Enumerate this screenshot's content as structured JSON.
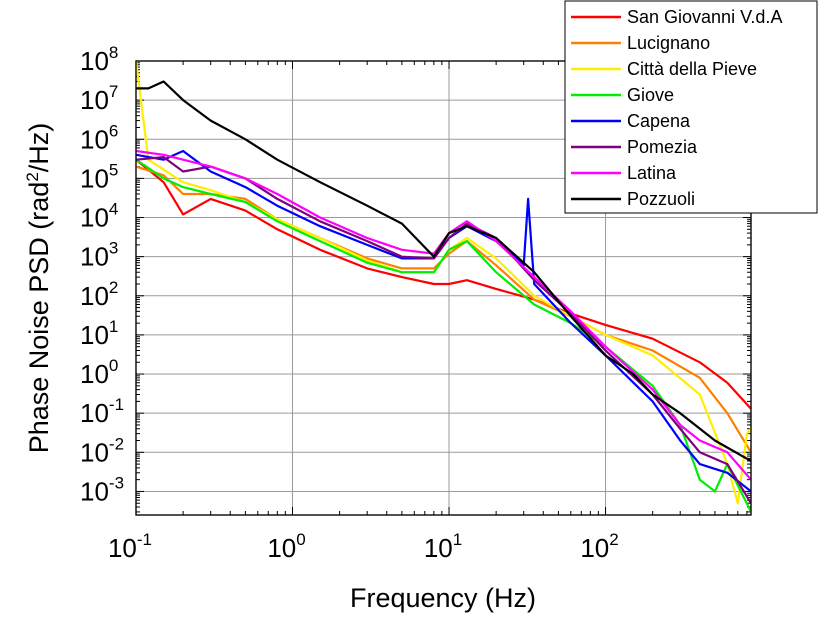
{
  "chart_data": {
    "type": "line",
    "title": "",
    "xlabel": "Frequency (Hz)",
    "ylabel_main": "Phase Noise PSD (rad",
    "ylabel_sup": "2",
    "ylabel_tail": "/Hz)",
    "x_scale": "log",
    "y_scale": "log",
    "xlim": [
      0.1,
      850
    ],
    "ylim": [
      0.00025,
      100000000
    ],
    "grid": true,
    "legend_position": "top-right",
    "x_ticks": [
      {
        "base": "10",
        "exp": "-1",
        "value": 0.1
      },
      {
        "base": "10",
        "exp": "0",
        "value": 1
      },
      {
        "base": "10",
        "exp": "1",
        "value": 10
      },
      {
        "base": "10",
        "exp": "2",
        "value": 100
      }
    ],
    "y_ticks": [
      {
        "base": "10",
        "exp": "8",
        "value": 100000000
      },
      {
        "base": "10",
        "exp": "7",
        "value": 10000000
      },
      {
        "base": "10",
        "exp": "6",
        "value": 1000000
      },
      {
        "base": "10",
        "exp": "5",
        "value": 100000
      },
      {
        "base": "10",
        "exp": "4",
        "value": 10000
      },
      {
        "base": "10",
        "exp": "3",
        "value": 1000
      },
      {
        "base": "10",
        "exp": "2",
        "value": 100
      },
      {
        "base": "10",
        "exp": "1",
        "value": 10
      },
      {
        "base": "10",
        "exp": "0",
        "value": 1
      },
      {
        "base": "10",
        "exp": "-1",
        "value": 0.1
      },
      {
        "base": "10",
        "exp": "-2",
        "value": 0.01
      },
      {
        "base": "10",
        "exp": "-3",
        "value": 0.001
      }
    ],
    "series": [
      {
        "name": "San Giovanni V.d.A",
        "color": "#ff0000",
        "points": [
          [
            0.1,
            300000
          ],
          [
            0.15,
            80000
          ],
          [
            0.2,
            12000
          ],
          [
            0.3,
            30000
          ],
          [
            0.5,
            15000
          ],
          [
            0.8,
            5000
          ],
          [
            1.5,
            1500
          ],
          [
            3,
            500
          ],
          [
            5,
            300
          ],
          [
            8,
            200
          ],
          [
            10,
            200
          ],
          [
            13,
            250
          ],
          [
            20,
            150
          ],
          [
            35,
            80
          ],
          [
            60,
            35
          ],
          [
            100,
            18
          ],
          [
            200,
            8
          ],
          [
            400,
            2
          ],
          [
            600,
            0.6
          ],
          [
            850,
            0.13
          ]
        ]
      },
      {
        "name": "Lucignano",
        "color": "#ff8000",
        "points": [
          [
            0.1,
            200000
          ],
          [
            0.15,
            120000
          ],
          [
            0.2,
            40000
          ],
          [
            0.3,
            40000
          ],
          [
            0.5,
            30000
          ],
          [
            0.8,
            9000
          ],
          [
            1.5,
            3000
          ],
          [
            3,
            900
          ],
          [
            5,
            500
          ],
          [
            8,
            500
          ],
          [
            10,
            1200
          ],
          [
            13,
            2500
          ],
          [
            20,
            600
          ],
          [
            35,
            80
          ],
          [
            60,
            30
          ],
          [
            100,
            10
          ],
          [
            200,
            4
          ],
          [
            400,
            0.8
          ],
          [
            600,
            0.1
          ],
          [
            850,
            0.01
          ]
        ]
      },
      {
        "name": "Città della Pieve",
        "color": "#ffee00",
        "points": [
          [
            0.1,
            100000000
          ],
          [
            0.12,
            300000
          ],
          [
            0.2,
            80000
          ],
          [
            0.3,
            50000
          ],
          [
            0.5,
            25000
          ],
          [
            0.8,
            9000
          ],
          [
            1.5,
            3000
          ],
          [
            3,
            800
          ],
          [
            5,
            400
          ],
          [
            8,
            400
          ],
          [
            10,
            1500
          ],
          [
            13,
            3000
          ],
          [
            20,
            900
          ],
          [
            35,
            100
          ],
          [
            60,
            30
          ],
          [
            100,
            10
          ],
          [
            200,
            3
          ],
          [
            400,
            0.3
          ],
          [
            600,
            0.005
          ],
          [
            700,
            0.0005
          ],
          [
            800,
            0.03
          ],
          [
            850,
            0.04
          ]
        ]
      },
      {
        "name": "Giove",
        "color": "#00ee00",
        "points": [
          [
            0.1,
            300000
          ],
          [
            0.15,
            100000
          ],
          [
            0.2,
            60000
          ],
          [
            0.3,
            40000
          ],
          [
            0.5,
            25000
          ],
          [
            0.8,
            8000
          ],
          [
            1.5,
            2500
          ],
          [
            3,
            700
          ],
          [
            5,
            400
          ],
          [
            8,
            400
          ],
          [
            10,
            1500
          ],
          [
            13,
            2500
          ],
          [
            20,
            400
          ],
          [
            35,
            60
          ],
          [
            60,
            20
          ],
          [
            100,
            5
          ],
          [
            200,
            0.5
          ],
          [
            300,
            0.05
          ],
          [
            400,
            0.002
          ],
          [
            500,
            0.001
          ],
          [
            600,
            0.005
          ],
          [
            850,
            0.0003
          ]
        ]
      },
      {
        "name": "Capena",
        "color": "#0000ff",
        "points": [
          [
            0.1,
            400000
          ],
          [
            0.15,
            300000
          ],
          [
            0.2,
            500000
          ],
          [
            0.3,
            150000
          ],
          [
            0.5,
            60000
          ],
          [
            0.8,
            20000
          ],
          [
            1.5,
            6000
          ],
          [
            3,
            2000
          ],
          [
            5,
            900
          ],
          [
            8,
            900
          ],
          [
            10,
            3000
          ],
          [
            13,
            6000
          ],
          [
            20,
            2500
          ],
          [
            30,
            600
          ],
          [
            32,
            30000
          ],
          [
            35,
            200
          ],
          [
            60,
            20
          ],
          [
            100,
            3
          ],
          [
            200,
            0.2
          ],
          [
            300,
            0.02
          ],
          [
            400,
            0.005
          ],
          [
            600,
            0.003
          ],
          [
            850,
            0.001
          ]
        ]
      },
      {
        "name": "Pomezia",
        "color": "#800080",
        "points": [
          [
            0.1,
            300000
          ],
          [
            0.15,
            350000
          ],
          [
            0.2,
            150000
          ],
          [
            0.3,
            200000
          ],
          [
            0.5,
            100000
          ],
          [
            0.8,
            30000
          ],
          [
            1.5,
            8000
          ],
          [
            3,
            2500
          ],
          [
            5,
            1000
          ],
          [
            8,
            900
          ],
          [
            10,
            3000
          ],
          [
            13,
            7000
          ],
          [
            20,
            3000
          ],
          [
            35,
            250
          ],
          [
            60,
            35
          ],
          [
            100,
            4
          ],
          [
            200,
            0.3
          ],
          [
            300,
            0.04
          ],
          [
            400,
            0.01
          ],
          [
            600,
            0.005
          ],
          [
            850,
            0.0005
          ]
        ]
      },
      {
        "name": "Latina",
        "color": "#ff00ff",
        "points": [
          [
            0.1,
            500000
          ],
          [
            0.15,
            400000
          ],
          [
            0.2,
            300000
          ],
          [
            0.3,
            200000
          ],
          [
            0.5,
            100000
          ],
          [
            0.8,
            40000
          ],
          [
            1.5,
            10000
          ],
          [
            3,
            3000
          ],
          [
            5,
            1500
          ],
          [
            8,
            1200
          ],
          [
            10,
            4000
          ],
          [
            13,
            8000
          ],
          [
            20,
            2500
          ],
          [
            35,
            300
          ],
          [
            60,
            40
          ],
          [
            100,
            5
          ],
          [
            200,
            0.4
          ],
          [
            300,
            0.05
          ],
          [
            400,
            0.02
          ],
          [
            600,
            0.01
          ],
          [
            850,
            0.002
          ]
        ]
      },
      {
        "name": "Pozzuoli",
        "color": "#000000",
        "points": [
          [
            0.1,
            20000000
          ],
          [
            0.12,
            20000000
          ],
          [
            0.15,
            30000000
          ],
          [
            0.2,
            10000000
          ],
          [
            0.3,
            3000000
          ],
          [
            0.5,
            1000000
          ],
          [
            0.8,
            300000
          ],
          [
            1.5,
            80000
          ],
          [
            3,
            20000
          ],
          [
            5,
            7000
          ],
          [
            8,
            1000
          ],
          [
            10,
            4000
          ],
          [
            13,
            6000
          ],
          [
            20,
            3000
          ],
          [
            35,
            400
          ],
          [
            60,
            30
          ],
          [
            100,
            3
          ],
          [
            150,
            1
          ],
          [
            200,
            0.3
          ],
          [
            300,
            0.1
          ],
          [
            500,
            0.02
          ],
          [
            850,
            0.006
          ]
        ]
      }
    ]
  }
}
